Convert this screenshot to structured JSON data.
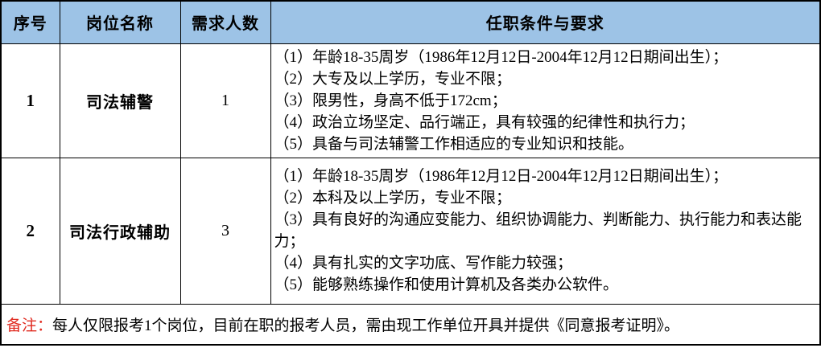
{
  "table": {
    "columns": [
      {
        "key": "no",
        "label": "序号"
      },
      {
        "key": "position",
        "label": "岗位名称"
      },
      {
        "key": "count",
        "label": "需求人数"
      },
      {
        "key": "req",
        "label": "任职条件与要求"
      }
    ],
    "rows": [
      {
        "no": "1",
        "position": "司法辅警",
        "headcount": "1",
        "requirements": [
          "（1）年龄18-35周岁（1986年12月12日-2004年12月12日期间出生）；",
          "（2）大专及以上学历，专业不限；",
          "（3）限男性，身高不低于172cm；",
          "（4）政治立场坚定、品行端正，具有较强的纪律性和执行力；",
          "（5）具备与司法辅警工作相适应的专业知识和技能。"
        ]
      },
      {
        "no": "2",
        "position": "司法行政辅助",
        "headcount": "3",
        "requirements": [
          "（1）年龄18-35周岁（1986年12月12日-2004年12月12日期间出生）；",
          "（2）本科及以上学历，专业不限；",
          "（3）具有良好的沟通应变能力、组织协调能力、判断能力、执行能力和表达能力；",
          "（4）具有扎实的文字功底、写作能力较强；",
          "（5）能够熟练操作和使用计算机及各类办公软件。"
        ]
      }
    ],
    "note": {
      "label": "备注：",
      "text": "每人仅限报考1个岗位，目前在职的报考人员，需由现工作单位开具并提供《同意报考证明》。"
    }
  },
  "colors": {
    "header_bg": "#9dc3e6",
    "note_label": "#e02a1f",
    "border": "#000000",
    "text": "#000000"
  }
}
